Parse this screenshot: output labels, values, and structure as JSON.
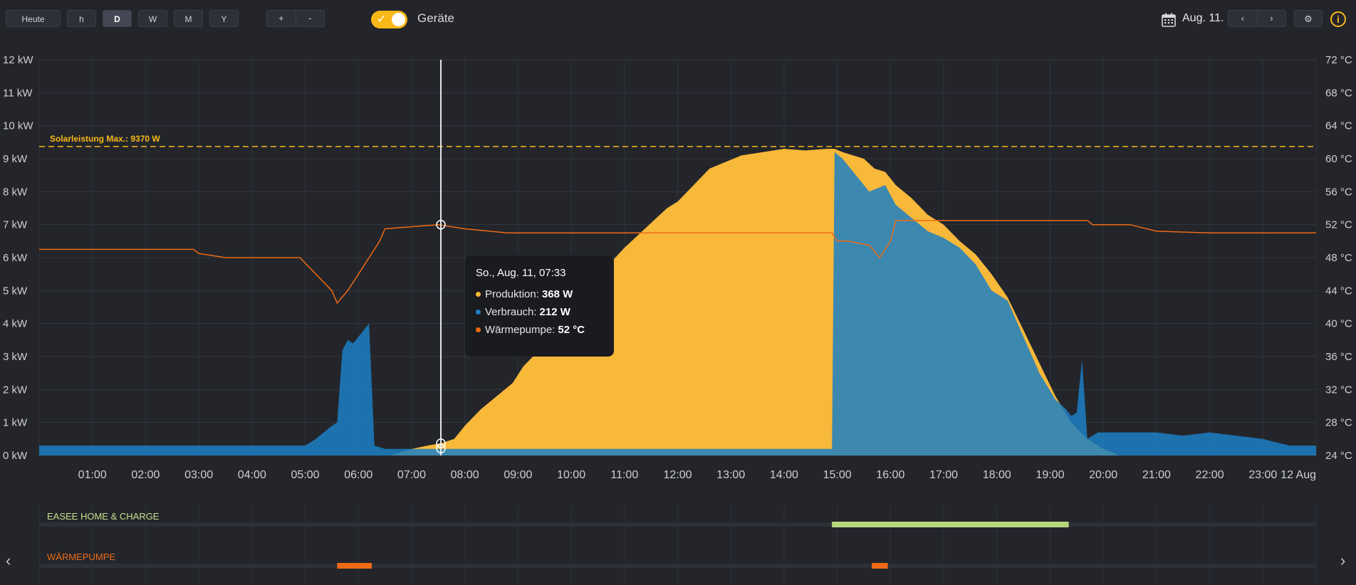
{
  "toolbar": {
    "today_label": "Heute",
    "period_buttons": [
      "h",
      "D",
      "W",
      "M",
      "Y"
    ],
    "active_period": "D",
    "zoom_in_label": "+",
    "zoom_out_label": "-",
    "devices_toggle_on": true,
    "devices_label": "Geräte",
    "date_label": "Aug. 11.",
    "prev_label": "‹",
    "next_label": "›"
  },
  "colors": {
    "production": "#f8b83a",
    "consumption": "#1c7fc4",
    "consumption_overlap": "#5aa9c0",
    "heatpump": "#ef6a14",
    "solar_max_line": "#f8b817",
    "ev_charger": "#b6d67a",
    "background": "#23252b"
  },
  "tooltip": {
    "title": "So., Aug. 11, 07:33",
    "rows": [
      {
        "label": "Produktion:",
        "value": "368 W",
        "color": "#f8b83a"
      },
      {
        "label": "Verbrauch:",
        "value": "212 W",
        "color": "#1c7fc4"
      },
      {
        "label": "Wärmepumpe:",
        "value": "52 °C",
        "color": "#ef6a14"
      }
    ]
  },
  "chart_data": {
    "type": "area",
    "title": "",
    "xlabel": "",
    "ylabel": "",
    "x_ticks": [
      "01:00",
      "02:00",
      "03:00",
      "04:00",
      "05:00",
      "06:00",
      "07:00",
      "08:00",
      "09:00",
      "10:00",
      "11:00",
      "12:00",
      "13:00",
      "14:00",
      "15:00",
      "16:00",
      "17:00",
      "18:00",
      "19:00",
      "20:00",
      "21:00",
      "22:00",
      "23:00",
      "12 Aug"
    ],
    "xlim_hours": [
      0,
      24
    ],
    "y_left_ticks": [
      "0 kW",
      "1 kW",
      "2 kW",
      "3 kW",
      "4 kW",
      "5 kW",
      "6 kW",
      "7 kW",
      "8 kW",
      "9 kW",
      "10 kW",
      "11 kW",
      "12 kW"
    ],
    "y_left_range_kw": [
      0,
      12
    ],
    "y_right_ticks": [
      "24 °C",
      "28 °C",
      "32 °C",
      "36 °C",
      "40 °C",
      "44 °C",
      "48 °C",
      "52 °C",
      "56 °C",
      "60 °C",
      "64 °C",
      "68 °C",
      "72 °C"
    ],
    "y_right_range_c": [
      24,
      72
    ],
    "solar_max_label": "Solarleistung Max.: 9370 W",
    "solar_max_kw": 9.37,
    "cursor_hour": 7.55,
    "series": [
      {
        "name": "Produktion",
        "axis": "left",
        "hours": [
          6.6,
          7.0,
          7.3,
          7.55,
          7.8,
          8.0,
          8.3,
          8.6,
          8.9,
          9.1,
          9.4,
          9.8,
          10.2,
          10.6,
          11.0,
          11.4,
          11.8,
          12.0,
          12.3,
          12.6,
          12.9,
          13.2,
          13.6,
          14.0,
          14.4,
          14.8,
          14.95,
          15.1,
          15.3,
          15.5,
          15.7,
          15.9,
          16.1,
          16.4,
          16.7,
          17.0,
          17.3,
          17.6,
          17.9,
          18.2,
          18.5,
          18.8,
          19.1,
          19.4,
          19.7,
          20.0,
          20.3
        ],
        "values_kw": [
          0.0,
          0.2,
          0.3,
          0.37,
          0.5,
          0.9,
          1.4,
          1.8,
          2.2,
          2.7,
          3.2,
          4.0,
          4.8,
          5.6,
          6.3,
          6.9,
          7.5,
          7.7,
          8.2,
          8.7,
          8.9,
          9.1,
          9.2,
          9.3,
          9.25,
          9.3,
          9.3,
          9.2,
          9.1,
          9.0,
          8.7,
          8.6,
          8.2,
          7.8,
          7.3,
          7.0,
          6.5,
          6.1,
          5.5,
          4.8,
          3.8,
          2.8,
          1.8,
          1.0,
          0.5,
          0.2,
          0.0
        ]
      },
      {
        "name": "Verbrauch",
        "axis": "left",
        "hours": [
          0.0,
          5.0,
          5.2,
          5.5,
          5.6,
          5.7,
          5.8,
          5.9,
          6.0,
          6.1,
          6.2,
          6.3,
          6.5,
          14.9,
          14.95,
          15.1,
          15.3,
          15.6,
          15.9,
          16.1,
          16.4,
          16.7,
          17.0,
          17.3,
          17.6,
          17.9,
          18.2,
          18.5,
          18.8,
          19.1,
          19.3,
          19.4,
          19.5,
          19.6,
          19.7,
          19.8,
          19.9,
          20.5,
          21.0,
          21.5,
          22.0,
          22.5,
          23.0,
          23.5,
          24.0
        ],
        "values_kw": [
          0.3,
          0.3,
          0.5,
          0.9,
          1.0,
          3.2,
          3.5,
          3.4,
          3.6,
          3.8,
          4.0,
          0.3,
          0.2,
          0.2,
          9.2,
          9.0,
          8.6,
          8.0,
          8.2,
          7.6,
          7.2,
          6.8,
          6.6,
          6.3,
          5.8,
          5.0,
          4.7,
          3.6,
          2.5,
          1.7,
          1.4,
          1.2,
          1.3,
          2.9,
          0.5,
          0.6,
          0.7,
          0.7,
          0.7,
          0.6,
          0.7,
          0.6,
          0.5,
          0.3,
          0.3
        ]
      },
      {
        "name": "Wärmepumpe",
        "axis": "right",
        "hours": [
          0.0,
          2.9,
          3.0,
          3.2,
          3.5,
          4.9,
          5.2,
          5.5,
          5.6,
          5.8,
          6.0,
          6.2,
          6.4,
          6.5,
          7.5,
          8.0,
          8.8,
          11.0,
          12.0,
          14.9,
          15.0,
          15.2,
          15.6,
          15.8,
          16.0,
          16.1,
          17.0,
          18.0,
          19.0,
          19.7,
          19.8,
          20.5,
          21.0,
          22.0,
          23.0,
          24.0
        ],
        "values_c": [
          49.0,
          49.0,
          48.5,
          48.3,
          48.0,
          48.0,
          46.0,
          44.0,
          42.5,
          44.0,
          46.0,
          48.0,
          50.0,
          51.5,
          52.0,
          51.5,
          51.0,
          51.0,
          51.0,
          51.0,
          50.0,
          50.0,
          49.5,
          48.0,
          50.0,
          52.5,
          52.5,
          52.5,
          52.5,
          52.5,
          52.0,
          52.0,
          51.2,
          51.0,
          51.0,
          51.0
        ]
      }
    ]
  },
  "timeline": {
    "devices": [
      {
        "name": "EASEE HOME & CHARGE",
        "color": "#b6d67a",
        "intervals": [
          [
            14.9,
            19.35
          ]
        ]
      },
      {
        "name": "WÄRMEPUMPE",
        "color": "#ef6a14",
        "intervals": [
          [
            5.6,
            6.25
          ],
          [
            15.65,
            15.95
          ]
        ]
      }
    ],
    "prev_label": "‹",
    "next_label": "›"
  }
}
